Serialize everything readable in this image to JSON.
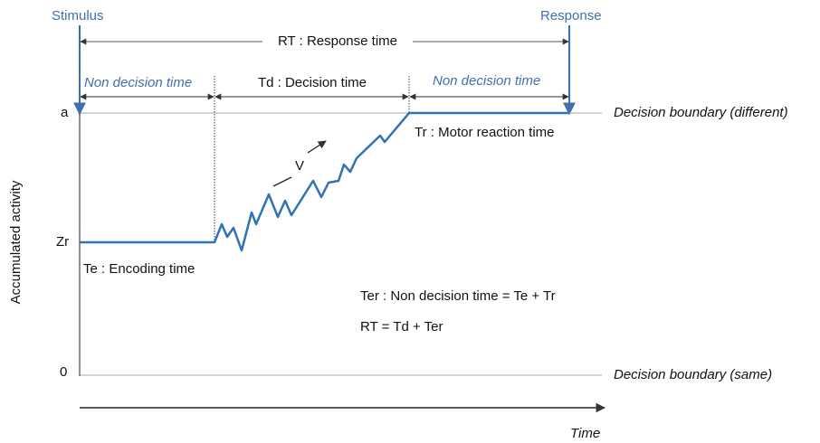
{
  "diagram": {
    "stimulus": "Stimulus",
    "response": "Response",
    "rt_span": "RT : Response time",
    "non_decision_left": "Non decision time",
    "decision_time": "Td : Decision time",
    "non_decision_right": "Non decision time",
    "level_a": "a",
    "boundary_different": "Decision boundary (different)",
    "level_zr": "Zr",
    "level_zero": "0",
    "boundary_same": "Decision boundary (same)",
    "y_axis_label": "Accumulated activity",
    "x_axis_label": "Time",
    "drift": "V",
    "motor_time": "Tr : Motor reaction time",
    "encoding_time": "Te : Encoding time",
    "ter_equation": "Ter : Non decision time = Te + Tr",
    "rt_equation": "RT = Td + Ter"
  }
}
